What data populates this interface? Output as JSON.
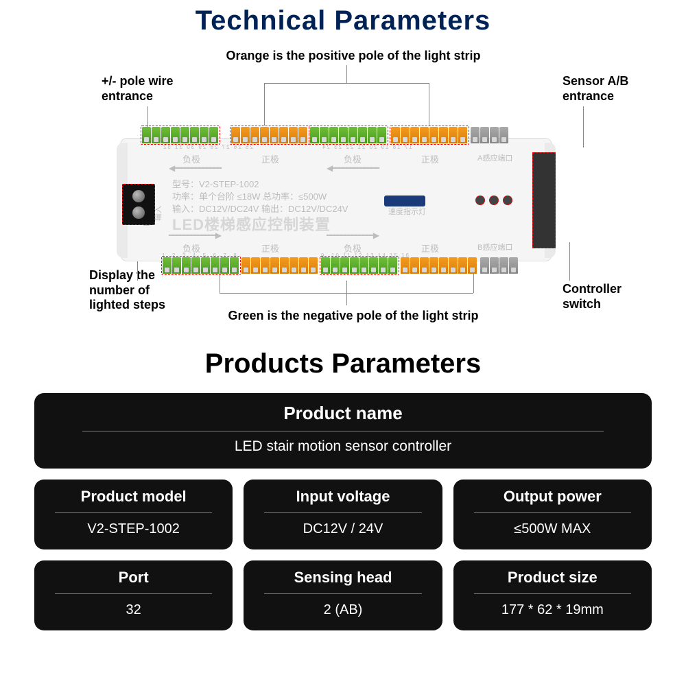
{
  "titles": {
    "technical": "Technical Parameters",
    "products": "Products Parameters"
  },
  "annotations": {
    "orange": "Orange is the positive pole of the light strip",
    "pole_wire": "+/- pole wire\nentrance",
    "sensor": "Sensor A/B\nentrance",
    "display_steps": "Display the\nnumber of\nlighted steps",
    "green": "Green is the negative pole of the light strip",
    "controller": "Controller\nswitch"
  },
  "pcb": {
    "model_line": "型号：V2-STEP-1002",
    "power_line": "功率：单个台阶 ≤18W 总功率：≤500W",
    "io_line": "输入：DC12V/DC24V  输出：DC12V/DC24V",
    "name_cn": "LED楼梯感应控制装置",
    "speed": "速度指示灯",
    "side_dc": "DC12/24V",
    "hall_cn": "咽投",
    "pos": "正极",
    "neg": "负极",
    "port_a": "A感应端口",
    "port_b": "B感应端口",
    "side_in": "输入"
  },
  "colors": {
    "title_blue": "#046",
    "green": "#5aaa2a",
    "orange": "#e88a10",
    "card_bg": "#111111",
    "dash": "#ff0000"
  },
  "terminals": {
    "top_left_count": 8,
    "top_right_groups": [
      8,
      8,
      8,
      8
    ],
    "bottom_groups": [
      8,
      8,
      8,
      8,
      8
    ]
  },
  "hero": {
    "label": "Product name",
    "value": "LED stair motion sensor controller"
  },
  "cards": [
    {
      "label": "Product model",
      "value": "V2-STEP-1002"
    },
    {
      "label": "Input voltage",
      "value": "DC12V / 24V"
    },
    {
      "label": "Output power",
      "value": "≤500W MAX"
    },
    {
      "label": "Port",
      "value": "32"
    },
    {
      "label": "Sensing head",
      "value": "2 (AB)"
    },
    {
      "label": "Product size",
      "value": "177 * 62 * 19mm"
    }
  ]
}
